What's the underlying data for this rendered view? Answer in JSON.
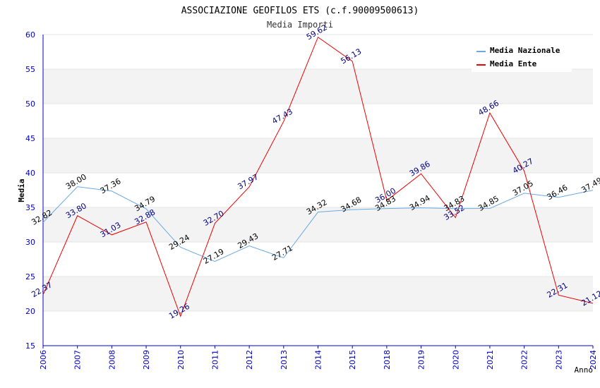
{
  "chart_data": {
    "type": "line",
    "title": "ASSOCIAZIONE GEOFILOS ETS (c.f.90009500613)",
    "subtitle": "Media Importi",
    "xlabel": "Anno",
    "ylabel": "Media",
    "ylim": [
      15,
      60
    ],
    "yticks": [
      15,
      20,
      25,
      30,
      35,
      40,
      45,
      50,
      55,
      60
    ],
    "categories": [
      "2006",
      "2007",
      "2008",
      "2009",
      "2010",
      "2011",
      "2012",
      "2013",
      "2014",
      "2015",
      "2018",
      "2019",
      "2020",
      "2021",
      "2022",
      "2023",
      "2024"
    ],
    "legend_position": "top-right",
    "grid": "alternating horizontal bands",
    "series": [
      {
        "name": "Media Nazionale",
        "color": "#6aaae4",
        "values": [
          32.82,
          38.0,
          37.36,
          34.79,
          29.24,
          27.19,
          29.43,
          27.71,
          34.32,
          34.68,
          34.83,
          34.94,
          34.83,
          34.85,
          37.05,
          36.46,
          37.49
        ],
        "labels": [
          "32.82",
          "38.00",
          "37.36",
          "34.79",
          "29.24",
          "27.19",
          "29.43",
          "27.71",
          "34.32",
          "34.68",
          "34.83",
          "34.94",
          "34.83",
          "34.85",
          "37.05",
          "36.46",
          "37.49"
        ]
      },
      {
        "name": "Media Ente",
        "color": "#ee0000",
        "values": [
          22.37,
          33.8,
          31.03,
          32.88,
          19.26,
          32.7,
          37.97,
          47.43,
          59.62,
          56.13,
          36.0,
          39.86,
          33.52,
          48.66,
          40.27,
          22.31,
          21.12
        ],
        "labels": [
          "22.37",
          "33.80",
          "31.03",
          "32.88",
          "19.26",
          "32.70",
          "37.97",
          "47.43",
          "59.62",
          "56.13",
          "36.00",
          "39.86",
          "33.52",
          "48.66",
          "40.27",
          "22.31",
          "21.12"
        ]
      }
    ]
  },
  "colors": {
    "axis": "#0000cc",
    "band": "#f3f3f3",
    "ente_label": "#000080",
    "nazionale_label": "#000000"
  }
}
